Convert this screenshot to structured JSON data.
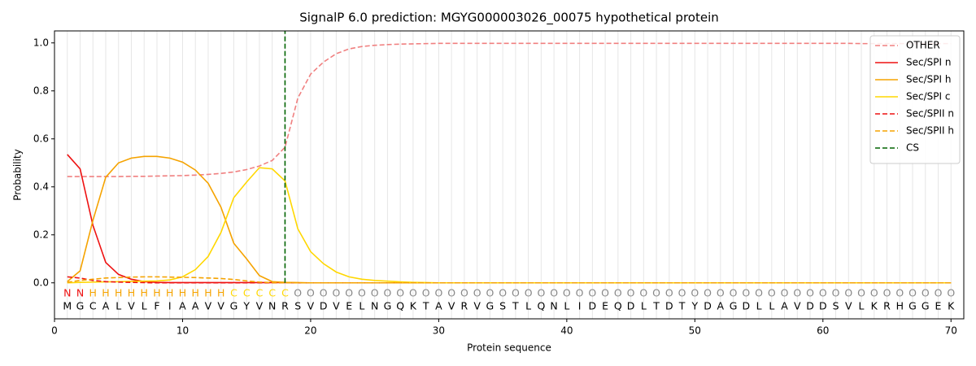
{
  "chart_data": {
    "type": "line",
    "title": "SignalP 6.0 prediction: MGYG000003026_00075 hypothetical protein",
    "x_label": "Protein sequence",
    "y_label": "Probability",
    "xlim": [
      0,
      71
    ],
    "ylim": [
      -0.15,
      1.05
    ],
    "xticks": [
      0,
      10,
      20,
      30,
      40,
      50,
      60,
      70
    ],
    "yticks": [
      {
        "value": 0,
        "label": "0.0"
      },
      {
        "value": 0.2,
        "label": "0.2"
      },
      {
        "value": 0.4,
        "label": "0.4"
      },
      {
        "value": 0.6,
        "label": "0.6"
      },
      {
        "value": 0.8,
        "label": "0.8"
      },
      {
        "value": 1.0,
        "label": "1.0"
      }
    ],
    "legend": "upper right",
    "x": [
      1,
      2,
      3,
      4,
      5,
      6,
      7,
      8,
      9,
      10,
      11,
      12,
      13,
      14,
      15,
      16,
      17,
      18,
      19,
      20,
      21,
      22,
      23,
      24,
      25,
      26,
      27,
      28,
      29,
      30,
      31,
      32,
      33,
      34,
      35,
      36,
      37,
      38,
      39,
      40,
      41,
      42,
      43,
      44,
      45,
      46,
      47,
      48,
      49,
      50,
      51,
      52,
      53,
      54,
      55,
      56,
      57,
      58,
      59,
      60,
      61,
      62,
      63,
      64,
      65,
      66,
      67,
      68,
      69,
      70
    ],
    "sequence": [
      "M",
      "G",
      "C",
      "A",
      "L",
      "V",
      "L",
      "F",
      "I",
      "A",
      "A",
      "V",
      "V",
      "G",
      "Y",
      "V",
      "N",
      "R",
      "S",
      "V",
      "D",
      "V",
      "E",
      "L",
      "N",
      "G",
      "Q",
      "K",
      "T",
      "A",
      "V",
      "R",
      "V",
      "G",
      "S",
      "T",
      "L",
      "Q",
      "N",
      "L",
      "I",
      "D",
      "E",
      "Q",
      "D",
      "L",
      "T",
      "D",
      "T",
      "Y",
      "D",
      "A",
      "G",
      "D",
      "L",
      "L",
      "A",
      "V",
      "D",
      "D",
      "S",
      "V",
      "L",
      "K",
      "R",
      "H",
      "G",
      "G",
      "E",
      "K"
    ],
    "regions": [
      "N",
      "N",
      "H",
      "H",
      "H",
      "H",
      "H",
      "H",
      "H",
      "H",
      "H",
      "H",
      "H",
      "C",
      "C",
      "C",
      "C",
      "C",
      "O",
      "O",
      "O",
      "O",
      "O",
      "O",
      "O",
      "O",
      "O",
      "O",
      "O",
      "O",
      "O",
      "O",
      "O",
      "O",
      "O",
      "O",
      "O",
      "O",
      "O",
      "O",
      "O",
      "O",
      "O",
      "O",
      "O",
      "O",
      "O",
      "O",
      "O",
      "O",
      "O",
      "O",
      "O",
      "O",
      "O",
      "O",
      "O",
      "O",
      "O",
      "O",
      "O",
      "O",
      "O",
      "O",
      "O",
      "O",
      "O",
      "O",
      "O",
      "O"
    ],
    "region_colors": {
      "N": "#ee1111",
      "H": "#f5a300",
      "C": "#ffd700",
      "O": "#888888"
    },
    "series": [
      {
        "name": "OTHER",
        "color": "#f08080",
        "style": "dashed",
        "values": [
          0.443,
          0.443,
          0.443,
          0.443,
          0.443,
          0.444,
          0.444,
          0.445,
          0.446,
          0.447,
          0.449,
          0.452,
          0.456,
          0.462,
          0.472,
          0.487,
          0.51,
          0.565,
          0.77,
          0.87,
          0.92,
          0.955,
          0.975,
          0.985,
          0.99,
          0.993,
          0.995,
          0.996,
          0.997,
          0.998,
          0.998,
          0.998,
          0.998,
          0.998,
          0.998,
          0.998,
          0.998,
          0.998,
          0.998,
          0.998,
          0.998,
          0.998,
          0.998,
          0.998,
          0.998,
          0.998,
          0.998,
          0.998,
          0.998,
          0.998,
          0.998,
          0.998,
          0.998,
          0.998,
          0.998,
          0.998,
          0.998,
          0.998,
          0.998,
          0.998,
          0.998,
          0.998,
          0.997,
          0.997,
          0.997,
          0.997,
          0.997,
          0.997,
          0.997,
          0.997
        ]
      },
      {
        "name": "Sec/SPI n",
        "color": "#ee1111",
        "style": "solid",
        "values": [
          0.535,
          0.475,
          0.24,
          0.085,
          0.035,
          0.015,
          0.005,
          0.002,
          0.001,
          0.001,
          0.001,
          0.001,
          0.001,
          0.001,
          0.001,
          0.001,
          0.001,
          0.001,
          0,
          0,
          0,
          0,
          0,
          0,
          0,
          0,
          0,
          0,
          0,
          0,
          0,
          0,
          0,
          0,
          0,
          0,
          0,
          0,
          0,
          0,
          0,
          0,
          0,
          0,
          0,
          0,
          0,
          0,
          0,
          0,
          0,
          0,
          0,
          0,
          0,
          0,
          0,
          0,
          0,
          0,
          0,
          0,
          0,
          0,
          0,
          0,
          0,
          0,
          0,
          0
        ]
      },
      {
        "name": "Sec/SPI h",
        "color": "#f5a300",
        "style": "solid",
        "values": [
          0.005,
          0.05,
          0.26,
          0.44,
          0.5,
          0.52,
          0.527,
          0.527,
          0.52,
          0.503,
          0.47,
          0.415,
          0.315,
          0.165,
          0.1,
          0.03,
          0.005,
          0.002,
          0.001,
          0,
          0,
          0,
          0,
          0,
          0,
          0,
          0,
          0,
          0,
          0,
          0,
          0,
          0,
          0,
          0,
          0,
          0,
          0,
          0,
          0,
          0,
          0,
          0,
          0,
          0,
          0,
          0,
          0,
          0,
          0,
          0,
          0,
          0,
          0,
          0,
          0,
          0,
          0,
          0,
          0,
          0,
          0,
          0,
          0,
          0,
          0,
          0,
          0,
          0,
          0
        ]
      },
      {
        "name": "Sec/SPI c",
        "color": "#ffd700",
        "style": "solid",
        "values": [
          0,
          0.002,
          0.003,
          0.004,
          0.005,
          0.006,
          0.007,
          0.008,
          0.012,
          0.025,
          0.055,
          0.11,
          0.21,
          0.355,
          0.42,
          0.48,
          0.475,
          0.425,
          0.225,
          0.13,
          0.08,
          0.045,
          0.025,
          0.015,
          0.01,
          0.007,
          0.004,
          0.002,
          0.001,
          0,
          0,
          0,
          0,
          0,
          0,
          0,
          0,
          0,
          0,
          0,
          0,
          0,
          0,
          0,
          0,
          0,
          0,
          0,
          0,
          0,
          0,
          0,
          0,
          0,
          0,
          0,
          0,
          0,
          0,
          0,
          0,
          0,
          0,
          0,
          0,
          0,
          0,
          0,
          0,
          0
        ]
      },
      {
        "name": "Sec/SPII n",
        "color": "#ee1111",
        "style": "dashed",
        "values": [
          0.025,
          0.02,
          0.01,
          0.005,
          0.003,
          0.002,
          0.001,
          0,
          0,
          0,
          0,
          0,
          0,
          0,
          0,
          0,
          0,
          0,
          0,
          0,
          0,
          0,
          0,
          0,
          0,
          0,
          0,
          0,
          0,
          0,
          0,
          0,
          0,
          0,
          0,
          0,
          0,
          0,
          0,
          0,
          0,
          0,
          0,
          0,
          0,
          0,
          0,
          0,
          0,
          0,
          0,
          0,
          0,
          0,
          0,
          0,
          0,
          0,
          0,
          0,
          0,
          0,
          0,
          0,
          0,
          0,
          0,
          0,
          0,
          0
        ]
      },
      {
        "name": "Sec/SPII h",
        "color": "#f5a300",
        "style": "dashed",
        "values": [
          0.002,
          0.01,
          0.015,
          0.02,
          0.022,
          0.024,
          0.025,
          0.025,
          0.024,
          0.023,
          0.022,
          0.02,
          0.018,
          0.014,
          0.008,
          0.003,
          0.001,
          0,
          0,
          0,
          0,
          0,
          0,
          0,
          0,
          0,
          0,
          0,
          0,
          0,
          0,
          0,
          0,
          0,
          0,
          0,
          0,
          0,
          0,
          0,
          0,
          0,
          0,
          0,
          0,
          0,
          0,
          0,
          0,
          0,
          0,
          0,
          0,
          0,
          0,
          0,
          0,
          0,
          0,
          0,
          0,
          0,
          0,
          0,
          0,
          0,
          0,
          0,
          0,
          0
        ]
      }
    ],
    "cs": {
      "name": "CS",
      "x": 18,
      "color": "#006400"
    }
  }
}
